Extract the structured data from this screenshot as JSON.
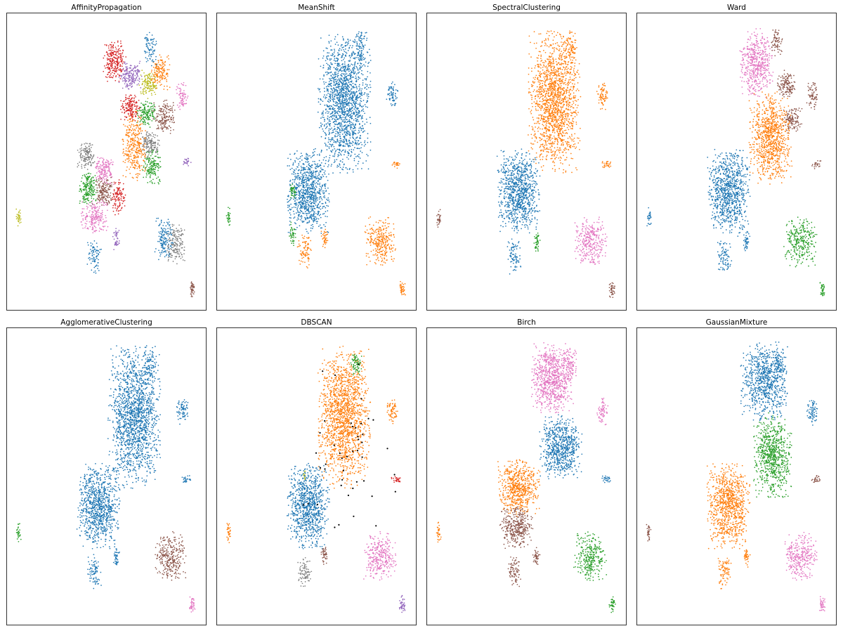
{
  "colors": {
    "blue": "#1f77b4",
    "orange": "#ff7f0e",
    "green": "#2ca02c",
    "red": "#d62728",
    "purple": "#9467bd",
    "brown": "#8c564b",
    "pink": "#e377c2",
    "gray": "#7f7f7f",
    "yellow": "#bcbd22",
    "black": "#000000"
  },
  "chart_data": [
    {
      "type": "scatter",
      "title": "AffinityPropagation",
      "xlim": [
        0,
        100
      ],
      "ylim": [
        0,
        100
      ],
      "clusters": [
        {
          "color": "red",
          "cx": 54,
          "cy": 84,
          "rx": 5,
          "ry": 6,
          "n": 260
        },
        {
          "color": "purple",
          "cx": 62,
          "cy": 79,
          "rx": 5,
          "ry": 4,
          "n": 170
        },
        {
          "color": "yellow",
          "cx": 71,
          "cy": 76,
          "rx": 4,
          "ry": 4,
          "n": 140
        },
        {
          "color": "orange",
          "cx": 77,
          "cy": 80,
          "rx": 4,
          "ry": 5,
          "n": 150
        },
        {
          "color": "red",
          "cx": 62,
          "cy": 68,
          "rx": 4,
          "ry": 4,
          "n": 170
        },
        {
          "color": "green",
          "cx": 70,
          "cy": 66,
          "rx": 4,
          "ry": 4,
          "n": 150
        },
        {
          "color": "brown",
          "cx": 79,
          "cy": 65,
          "rx": 5,
          "ry": 5,
          "n": 170
        },
        {
          "color": "gray",
          "cx": 72,
          "cy": 56,
          "rx": 4,
          "ry": 4,
          "n": 150
        },
        {
          "color": "orange",
          "cx": 64,
          "cy": 55,
          "rx": 5,
          "ry": 10,
          "n": 330
        },
        {
          "color": "green",
          "cx": 73,
          "cy": 48,
          "rx": 4,
          "ry": 5,
          "n": 150
        },
        {
          "color": "blue",
          "cx": 72,
          "cy": 88,
          "rx": 3,
          "ry": 5,
          "n": 80
        },
        {
          "color": "pink",
          "cx": 88,
          "cy": 72,
          "rx": 2.5,
          "ry": 4,
          "n": 70
        },
        {
          "color": "purple",
          "cx": 90,
          "cy": 50,
          "rx": 2,
          "ry": 1.2,
          "n": 25
        },
        {
          "color": "gray",
          "cx": 40,
          "cy": 52,
          "rx": 4,
          "ry": 4,
          "n": 140
        },
        {
          "color": "pink",
          "cx": 49,
          "cy": 47,
          "rx": 4,
          "ry": 4,
          "n": 160
        },
        {
          "color": "green",
          "cx": 41,
          "cy": 41,
          "rx": 4,
          "ry": 5,
          "n": 190
        },
        {
          "color": "brown",
          "cx": 49,
          "cy": 40,
          "rx": 4,
          "ry": 4,
          "n": 160
        },
        {
          "color": "red",
          "cx": 56,
          "cy": 38,
          "rx": 3,
          "ry": 5,
          "n": 110
        },
        {
          "color": "pink",
          "cx": 44,
          "cy": 31,
          "rx": 6,
          "ry": 5,
          "n": 210
        },
        {
          "color": "blue",
          "cx": 44,
          "cy": 18,
          "rx": 3,
          "ry": 5,
          "n": 80
        },
        {
          "color": "purple",
          "cx": 55,
          "cy": 24,
          "rx": 1.5,
          "ry": 3,
          "n": 40
        },
        {
          "color": "blue",
          "cx": 79,
          "cy": 24,
          "rx": 4,
          "ry": 6,
          "n": 150
        },
        {
          "color": "gray",
          "cx": 85,
          "cy": 22,
          "rx": 4,
          "ry": 6,
          "n": 160
        },
        {
          "color": "brown",
          "cx": 93,
          "cy": 7,
          "rx": 1.3,
          "ry": 2.5,
          "n": 40
        },
        {
          "color": "yellow",
          "cx": 6,
          "cy": 31,
          "rx": 1,
          "ry": 3,
          "n": 30
        }
      ]
    },
    {
      "type": "scatter",
      "title": "MeanShift",
      "xlim": [
        0,
        100
      ],
      "ylim": [
        0,
        100
      ],
      "clusters": [
        {
          "color": "blue",
          "cx": 64,
          "cy": 70,
          "rx": 11,
          "ry": 20,
          "n": 1600
        },
        {
          "color": "blue",
          "cx": 72,
          "cy": 88,
          "rx": 3,
          "ry": 5,
          "n": 80
        },
        {
          "color": "blue",
          "cx": 88,
          "cy": 72,
          "rx": 2.5,
          "ry": 4,
          "n": 70
        },
        {
          "color": "orange",
          "cx": 90,
          "cy": 49,
          "rx": 2,
          "ry": 1.2,
          "n": 25
        },
        {
          "color": "blue",
          "cx": 46,
          "cy": 40,
          "rx": 9,
          "ry": 12,
          "n": 900
        },
        {
          "color": "green",
          "cx": 38,
          "cy": 40,
          "rx": 1.5,
          "ry": 2,
          "n": 40
        },
        {
          "color": "green",
          "cx": 38,
          "cy": 25,
          "rx": 1.5,
          "ry": 4,
          "n": 40
        },
        {
          "color": "orange",
          "cx": 44,
          "cy": 20,
          "rx": 3,
          "ry": 5,
          "n": 80
        },
        {
          "color": "orange",
          "cx": 54,
          "cy": 24,
          "rx": 1.5,
          "ry": 3,
          "n": 40
        },
        {
          "color": "orange",
          "cx": 82,
          "cy": 23,
          "rx": 7,
          "ry": 7,
          "n": 300
        },
        {
          "color": "orange",
          "cx": 93,
          "cy": 7,
          "rx": 1.3,
          "ry": 2.5,
          "n": 40
        },
        {
          "color": "green",
          "cx": 6,
          "cy": 31,
          "rx": 1,
          "ry": 3,
          "n": 30
        }
      ]
    },
    {
      "type": "scatter",
      "title": "SpectralClustering",
      "xlim": [
        0,
        100
      ],
      "ylim": [
        0,
        100
      ],
      "clusters": [
        {
          "color": "orange",
          "cx": 64,
          "cy": 70,
          "rx": 11,
          "ry": 20,
          "n": 1600
        },
        {
          "color": "orange",
          "cx": 72,
          "cy": 88,
          "rx": 3,
          "ry": 5,
          "n": 80
        },
        {
          "color": "orange",
          "cx": 88,
          "cy": 72,
          "rx": 2.5,
          "ry": 4,
          "n": 70
        },
        {
          "color": "orange",
          "cx": 90,
          "cy": 49,
          "rx": 2,
          "ry": 1.2,
          "n": 25
        },
        {
          "color": "blue",
          "cx": 46,
          "cy": 40,
          "rx": 9,
          "ry": 12,
          "n": 900
        },
        {
          "color": "blue",
          "cx": 44,
          "cy": 18,
          "rx": 3,
          "ry": 5,
          "n": 80
        },
        {
          "color": "green",
          "cx": 55,
          "cy": 23,
          "rx": 1.5,
          "ry": 3,
          "n": 40
        },
        {
          "color": "pink",
          "cx": 82,
          "cy": 23,
          "rx": 7,
          "ry": 7,
          "n": 300
        },
        {
          "color": "brown",
          "cx": 93,
          "cy": 7,
          "rx": 1.3,
          "ry": 2.5,
          "n": 40
        },
        {
          "color": "brown",
          "cx": 6,
          "cy": 31,
          "rx": 1,
          "ry": 3,
          "n": 30
        }
      ]
    },
    {
      "type": "scatter",
      "title": "Ward",
      "xlim": [
        0,
        100
      ],
      "ylim": [
        0,
        100
      ],
      "clusters": [
        {
          "color": "pink",
          "cx": 60,
          "cy": 83,
          "rx": 7,
          "ry": 10,
          "n": 500
        },
        {
          "color": "brown",
          "cx": 70,
          "cy": 90,
          "rx": 2.5,
          "ry": 4,
          "n": 70
        },
        {
          "color": "brown",
          "cx": 75,
          "cy": 76,
          "rx": 4,
          "ry": 4,
          "n": 140
        },
        {
          "color": "brown",
          "cx": 78,
          "cy": 64,
          "rx": 4,
          "ry": 4,
          "n": 130
        },
        {
          "color": "brown",
          "cx": 88,
          "cy": 72,
          "rx": 2.5,
          "ry": 4,
          "n": 70
        },
        {
          "color": "brown",
          "cx": 90,
          "cy": 49,
          "rx": 2,
          "ry": 1.2,
          "n": 25
        },
        {
          "color": "orange",
          "cx": 67,
          "cy": 58,
          "rx": 9,
          "ry": 13,
          "n": 900
        },
        {
          "color": "blue",
          "cx": 46,
          "cy": 40,
          "rx": 9,
          "ry": 12,
          "n": 900
        },
        {
          "color": "blue",
          "cx": 44,
          "cy": 18,
          "rx": 3,
          "ry": 5,
          "n": 80
        },
        {
          "color": "blue",
          "cx": 55,
          "cy": 23,
          "rx": 1.5,
          "ry": 3,
          "n": 40
        },
        {
          "color": "green",
          "cx": 82,
          "cy": 23,
          "rx": 7,
          "ry": 7,
          "n": 300
        },
        {
          "color": "green",
          "cx": 93,
          "cy": 7,
          "rx": 1.3,
          "ry": 2.5,
          "n": 40
        },
        {
          "color": "blue",
          "cx": 6,
          "cy": 31,
          "rx": 1,
          "ry": 3,
          "n": 30
        }
      ]
    },
    {
      "type": "scatter",
      "title": "AgglomerativeClustering",
      "xlim": [
        0,
        100
      ],
      "ylim": [
        0,
        100
      ],
      "clusters": [
        {
          "color": "blue",
          "cx": 64,
          "cy": 70,
          "rx": 11,
          "ry": 20,
          "n": 1600
        },
        {
          "color": "blue",
          "cx": 72,
          "cy": 88,
          "rx": 3,
          "ry": 5,
          "n": 80
        },
        {
          "color": "blue",
          "cx": 88,
          "cy": 72,
          "rx": 2.5,
          "ry": 4,
          "n": 70
        },
        {
          "color": "blue",
          "cx": 90,
          "cy": 49,
          "rx": 2,
          "ry": 1.2,
          "n": 25
        },
        {
          "color": "blue",
          "cx": 46,
          "cy": 40,
          "rx": 9,
          "ry": 12,
          "n": 900
        },
        {
          "color": "blue",
          "cx": 44,
          "cy": 18,
          "rx": 3,
          "ry": 5,
          "n": 80
        },
        {
          "color": "blue",
          "cx": 55,
          "cy": 23,
          "rx": 1.5,
          "ry": 3,
          "n": 40
        },
        {
          "color": "brown",
          "cx": 82,
          "cy": 23,
          "rx": 7,
          "ry": 7,
          "n": 300
        },
        {
          "color": "pink",
          "cx": 93,
          "cy": 7,
          "rx": 1.3,
          "ry": 2.5,
          "n": 40
        },
        {
          "color": "green",
          "cx": 6,
          "cy": 31,
          "rx": 1,
          "ry": 3,
          "n": 30
        }
      ]
    },
    {
      "type": "scatter",
      "title": "DBSCAN",
      "xlim": [
        0,
        100
      ],
      "ylim": [
        0,
        100
      ],
      "clusters": [
        {
          "color": "orange",
          "cx": 64,
          "cy": 70,
          "rx": 11,
          "ry": 20,
          "n": 1600
        },
        {
          "color": "green",
          "cx": 70,
          "cy": 88,
          "rx": 2.5,
          "ry": 4,
          "n": 70
        },
        {
          "color": "orange",
          "cx": 88,
          "cy": 72,
          "rx": 2.5,
          "ry": 4,
          "n": 70
        },
        {
          "color": "red",
          "cx": 90,
          "cy": 49,
          "rx": 2,
          "ry": 1.2,
          "n": 30
        },
        {
          "color": "yellow",
          "cx": 44,
          "cy": 50,
          "rx": 0.8,
          "ry": 1.5,
          "n": 12
        },
        {
          "color": "blue",
          "cx": 46,
          "cy": 40,
          "rx": 9,
          "ry": 12,
          "n": 900
        },
        {
          "color": "gray",
          "cx": 44,
          "cy": 18,
          "rx": 3,
          "ry": 5,
          "n": 80
        },
        {
          "color": "brown",
          "cx": 54,
          "cy": 24,
          "rx": 1.5,
          "ry": 3,
          "n": 40
        },
        {
          "color": "pink",
          "cx": 82,
          "cy": 23,
          "rx": 7,
          "ry": 7,
          "n": 300
        },
        {
          "color": "purple",
          "cx": 93,
          "cy": 7,
          "rx": 1.3,
          "ry": 2.5,
          "n": 40
        },
        {
          "color": "orange",
          "cx": 6,
          "cy": 31,
          "rx": 1,
          "ry": 3,
          "n": 30
        },
        {
          "color": "black",
          "cx": 66,
          "cy": 55,
          "rx": 22,
          "ry": 28,
          "n": 45
        }
      ]
    },
    {
      "type": "scatter",
      "title": "Birch",
      "xlim": [
        0,
        100
      ],
      "ylim": [
        0,
        100
      ],
      "clusters": [
        {
          "color": "pink",
          "cx": 63,
          "cy": 83,
          "rx": 9,
          "ry": 10,
          "n": 800
        },
        {
          "color": "pink",
          "cx": 72,
          "cy": 88,
          "rx": 3,
          "ry": 5,
          "n": 80
        },
        {
          "color": "pink",
          "cx": 88,
          "cy": 72,
          "rx": 2.5,
          "ry": 4,
          "n": 70
        },
        {
          "color": "blue",
          "cx": 67,
          "cy": 60,
          "rx": 9,
          "ry": 9,
          "n": 700
        },
        {
          "color": "blue",
          "cx": 90,
          "cy": 49,
          "rx": 2,
          "ry": 1.2,
          "n": 25
        },
        {
          "color": "orange",
          "cx": 46,
          "cy": 46,
          "rx": 9,
          "ry": 8,
          "n": 600
        },
        {
          "color": "brown",
          "cx": 45,
          "cy": 33,
          "rx": 7,
          "ry": 6,
          "n": 350
        },
        {
          "color": "brown",
          "cx": 44,
          "cy": 18,
          "rx": 3,
          "ry": 5,
          "n": 80
        },
        {
          "color": "brown",
          "cx": 55,
          "cy": 23,
          "rx": 1.5,
          "ry": 3,
          "n": 40
        },
        {
          "color": "green",
          "cx": 82,
          "cy": 23,
          "rx": 7,
          "ry": 7,
          "n": 300
        },
        {
          "color": "green",
          "cx": 93,
          "cy": 7,
          "rx": 1.3,
          "ry": 2.5,
          "n": 40
        },
        {
          "color": "orange",
          "cx": 6,
          "cy": 31,
          "rx": 1,
          "ry": 3,
          "n": 30
        }
      ]
    },
    {
      "type": "scatter",
      "title": "GaussianMixture",
      "xlim": [
        0,
        100
      ],
      "ylim": [
        0,
        100
      ],
      "clusters": [
        {
          "color": "blue",
          "cx": 64,
          "cy": 82,
          "rx": 10,
          "ry": 11,
          "n": 800
        },
        {
          "color": "blue",
          "cx": 72,
          "cy": 88,
          "rx": 3,
          "ry": 5,
          "n": 80
        },
        {
          "color": "blue",
          "cx": 88,
          "cy": 72,
          "rx": 2.5,
          "ry": 4,
          "n": 70
        },
        {
          "color": "green",
          "cx": 68,
          "cy": 57,
          "rx": 8,
          "ry": 12,
          "n": 750
        },
        {
          "color": "brown",
          "cx": 90,
          "cy": 49,
          "rx": 2,
          "ry": 1.2,
          "n": 25
        },
        {
          "color": "orange",
          "cx": 46,
          "cy": 40,
          "rx": 9,
          "ry": 12,
          "n": 900
        },
        {
          "color": "orange",
          "cx": 44,
          "cy": 18,
          "rx": 3,
          "ry": 5,
          "n": 80
        },
        {
          "color": "orange",
          "cx": 55,
          "cy": 23,
          "rx": 1.5,
          "ry": 3,
          "n": 40
        },
        {
          "color": "pink",
          "cx": 82,
          "cy": 23,
          "rx": 7,
          "ry": 7,
          "n": 300
        },
        {
          "color": "pink",
          "cx": 93,
          "cy": 7,
          "rx": 1.3,
          "ry": 2.5,
          "n": 40
        },
        {
          "color": "brown",
          "cx": 6,
          "cy": 31,
          "rx": 1,
          "ry": 3,
          "n": 30
        }
      ]
    }
  ]
}
